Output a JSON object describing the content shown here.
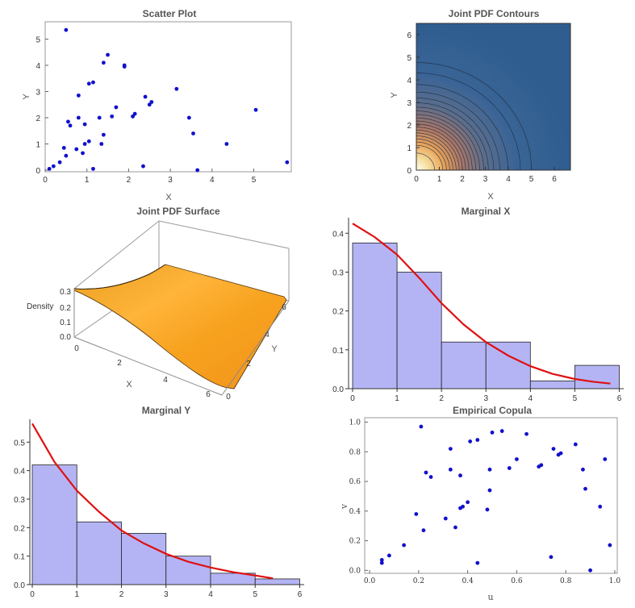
{
  "colors": {
    "point": "#1010cc",
    "bar_fill": "#b4b4f5",
    "bar_stroke": "#222222",
    "curve": "#e01010",
    "frame": "#999999",
    "contour_bg": "#2f5d8f",
    "surface": "#f7a21f"
  },
  "chart_data": [
    {
      "id": "scatter",
      "type": "scatter",
      "title": "Scatter Plot",
      "xlabel": "X",
      "ylabel": "Y",
      "xlim": [
        0,
        5.9
      ],
      "ylim": [
        0,
        5.6
      ],
      "xticks": [
        "0",
        "1",
        "2",
        "3",
        "4",
        "5"
      ],
      "yticks": [
        "0",
        "1",
        "2",
        "3",
        "4",
        "5"
      ],
      "points": [
        [
          0.1,
          0.05
        ],
        [
          0.2,
          0.15
        ],
        [
          0.35,
          0.3
        ],
        [
          0.45,
          0.85
        ],
        [
          0.5,
          0.55
        ],
        [
          0.5,
          5.35
        ],
        [
          0.55,
          1.85
        ],
        [
          0.6,
          1.7
        ],
        [
          0.75,
          0.8
        ],
        [
          0.8,
          2.0
        ],
        [
          0.8,
          2.85
        ],
        [
          0.9,
          0.65
        ],
        [
          0.95,
          1.0
        ],
        [
          0.95,
          1.75
        ],
        [
          1.05,
          3.3
        ],
        [
          1.05,
          1.1
        ],
        [
          1.15,
          3.35
        ],
        [
          1.15,
          0.05
        ],
        [
          1.3,
          2.0
        ],
        [
          1.35,
          1.0
        ],
        [
          1.4,
          1.35
        ],
        [
          1.4,
          4.1
        ],
        [
          1.5,
          4.4
        ],
        [
          1.6,
          2.05
        ],
        [
          1.7,
          2.4
        ],
        [
          1.9,
          4.0
        ],
        [
          1.9,
          3.95
        ],
        [
          2.1,
          2.05
        ],
        [
          2.15,
          2.15
        ],
        [
          2.35,
          0.15
        ],
        [
          2.4,
          2.8
        ],
        [
          2.5,
          2.5
        ],
        [
          2.55,
          2.6
        ],
        [
          3.15,
          3.1
        ],
        [
          3.45,
          2.0
        ],
        [
          3.55,
          1.4
        ],
        [
          3.65,
          0.0
        ],
        [
          4.35,
          1.0
        ],
        [
          5.05,
          2.3
        ],
        [
          5.8,
          0.3
        ]
      ]
    },
    {
      "id": "contours",
      "type": "contour",
      "title": "Joint PDF Contours",
      "xlabel": "X",
      "ylabel": "Y",
      "xlim": [
        0,
        6.7
      ],
      "ylim": [
        0,
        6.5
      ],
      "xticks": [
        "0",
        "1",
        "2",
        "3",
        "4",
        "5",
        "6"
      ],
      "yticks": [
        "0",
        "1",
        "2",
        "3",
        "4",
        "5",
        "6"
      ],
      "levels": [
        0.005,
        0.01,
        0.02,
        0.03,
        0.04,
        0.05,
        0.06,
        0.07,
        0.08,
        0.09,
        0.1,
        0.11,
        0.12,
        0.13,
        0.14,
        0.15,
        0.16,
        0.17,
        0.18,
        0.2
      ]
    },
    {
      "id": "surface",
      "type": "surface3d",
      "title": "Joint PDF Surface",
      "zlabel": "Density",
      "xlabel": "X",
      "ylabel": "Y",
      "zticks": [
        "0.3",
        "0.2",
        "0.1",
        "0.0"
      ],
      "xticks": [
        "0",
        "2",
        "4",
        "6"
      ],
      "yticks": [
        "0",
        "2",
        "4",
        "6"
      ]
    },
    {
      "id": "marginal_x",
      "type": "bar",
      "title": "Marginal X",
      "xlim": [
        0,
        6.1
      ],
      "ylim": [
        0,
        0.44
      ],
      "xticks": [
        "0",
        "1",
        "2",
        "3",
        "4",
        "5",
        "6"
      ],
      "yticks": [
        "0.0",
        "0.1",
        "0.2",
        "0.3",
        "0.4"
      ],
      "bins": [
        [
          0,
          1,
          0.375
        ],
        [
          1,
          2,
          0.3
        ],
        [
          2,
          3,
          0.12
        ],
        [
          3,
          4,
          0.12
        ],
        [
          4,
          5,
          0.02
        ],
        [
          5,
          6,
          0.06
        ]
      ],
      "curve": [
        [
          0,
          0.425
        ],
        [
          0.5,
          0.39
        ],
        [
          1,
          0.345
        ],
        [
          1.5,
          0.285
        ],
        [
          2,
          0.22
        ],
        [
          2.5,
          0.165
        ],
        [
          3,
          0.12
        ],
        [
          3.5,
          0.085
        ],
        [
          4,
          0.058
        ],
        [
          4.5,
          0.038
        ],
        [
          5,
          0.025
        ],
        [
          5.4,
          0.018
        ],
        [
          5.8,
          0.013
        ]
      ]
    },
    {
      "id": "marginal_y",
      "type": "bar",
      "title": "Marginal Y",
      "xlim": [
        0,
        6.1
      ],
      "ylim": [
        0,
        0.58
      ],
      "xticks": [
        "0",
        "1",
        "2",
        "3",
        "4",
        "5",
        "6"
      ],
      "yticks": [
        "0.0",
        "0.1",
        "0.2",
        "0.3",
        "0.4",
        "0.5"
      ],
      "bins": [
        [
          0,
          1,
          0.42
        ],
        [
          1,
          2,
          0.22
        ],
        [
          2,
          3,
          0.18
        ],
        [
          3,
          4,
          0.1
        ],
        [
          4,
          5,
          0.04
        ],
        [
          5,
          6,
          0.02
        ]
      ],
      "curve": [
        [
          0,
          0.565
        ],
        [
          0.5,
          0.43
        ],
        [
          1,
          0.33
        ],
        [
          1.5,
          0.255
        ],
        [
          2,
          0.19
        ],
        [
          2.5,
          0.145
        ],
        [
          3,
          0.108
        ],
        [
          3.5,
          0.08
        ],
        [
          4,
          0.06
        ],
        [
          4.5,
          0.044
        ],
        [
          5,
          0.032
        ],
        [
          5.4,
          0.022
        ]
      ]
    },
    {
      "id": "copula",
      "type": "scatter",
      "title": "Empirical Copula",
      "xlabel": "u",
      "ylabel": "v",
      "xlim": [
        -0.02,
        1.01
      ],
      "ylim": [
        -0.02,
        1.03
      ],
      "xticks": [
        "0.0",
        "0.2",
        "0.4",
        "0.6",
        "0.8",
        "1.0"
      ],
      "yticks": [
        "0.0",
        "0.2",
        "0.4",
        "0.6",
        "0.8",
        "1.0"
      ],
      "points": [
        [
          0.05,
          0.05
        ],
        [
          0.05,
          0.07
        ],
        [
          0.08,
          0.1
        ],
        [
          0.14,
          0.17
        ],
        [
          0.19,
          0.38
        ],
        [
          0.21,
          0.97
        ],
        [
          0.22,
          0.27
        ],
        [
          0.23,
          0.66
        ],
        [
          0.25,
          0.63
        ],
        [
          0.31,
          0.35
        ],
        [
          0.33,
          0.82
        ],
        [
          0.33,
          0.68
        ],
        [
          0.35,
          0.29
        ],
        [
          0.37,
          0.64
        ],
        [
          0.37,
          0.42
        ],
        [
          0.38,
          0.43
        ],
        [
          0.4,
          0.46
        ],
        [
          0.41,
          0.87
        ],
        [
          0.44,
          0.88
        ],
        [
          0.44,
          0.05
        ],
        [
          0.48,
          0.41
        ],
        [
          0.49,
          0.54
        ],
        [
          0.49,
          0.68
        ],
        [
          0.5,
          0.93
        ],
        [
          0.54,
          0.94
        ],
        [
          0.57,
          0.69
        ],
        [
          0.6,
          0.75
        ],
        [
          0.64,
          0.92
        ],
        [
          0.69,
          0.7
        ],
        [
          0.7,
          0.71
        ],
        [
          0.74,
          0.09
        ],
        [
          0.75,
          0.82
        ],
        [
          0.77,
          0.78
        ],
        [
          0.78,
          0.79
        ],
        [
          0.84,
          0.85
        ],
        [
          0.87,
          0.68
        ],
        [
          0.88,
          0.55
        ],
        [
          0.9,
          0.0
        ],
        [
          0.94,
          0.43
        ],
        [
          0.96,
          0.75
        ],
        [
          0.98,
          0.17
        ]
      ]
    }
  ]
}
